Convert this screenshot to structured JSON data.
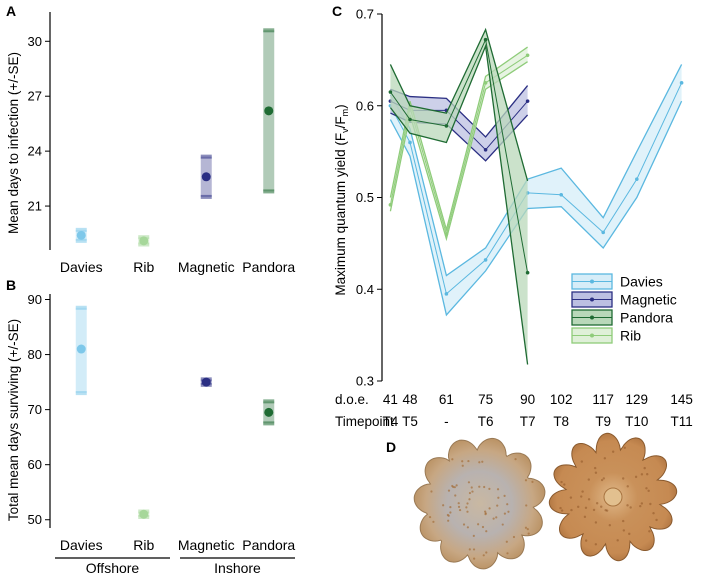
{
  "chart_data": [
    {
      "panel": "A",
      "type": "scatter",
      "title": "",
      "ylabel": "Mean days to infection (+/-SE)",
      "xlabel": "",
      "categories": [
        "Davies",
        "Rib",
        "Magnetic",
        "Pandora"
      ],
      "values": [
        19.4,
        19.1,
        22.6,
        26.2
      ],
      "se_low": [
        19.1,
        18.9,
        21.5,
        21.8
      ],
      "se_high": [
        19.7,
        19.3,
        23.7,
        30.6
      ],
      "colors": [
        "#7ec8ea",
        "#a6d79a",
        "#2b2f83",
        "#1f6b33"
      ],
      "ylim": [
        18.6,
        31.6
      ],
      "yticks": [
        21,
        24,
        27,
        30
      ]
    },
    {
      "panel": "B",
      "type": "scatter",
      "title": "",
      "ylabel": "Total mean days surviving (+/-SE)",
      "xlabel": "",
      "categories": [
        "Davies",
        "Rib",
        "Magnetic",
        "Pandora"
      ],
      "values": [
        81.0,
        51.0,
        75.0,
        69.5
      ],
      "se_low": [
        73.0,
        50.5,
        74.5,
        67.5
      ],
      "se_high": [
        88.5,
        51.5,
        75.5,
        71.5
      ],
      "colors": [
        "#7ec8ea",
        "#a6d79a",
        "#2b2f83",
        "#1f6b33"
      ],
      "ylim": [
        48.5,
        91
      ],
      "yticks": [
        50,
        60,
        70,
        80,
        90
      ],
      "groups": [
        {
          "label": "Offshore",
          "members": [
            "Davies",
            "Rib"
          ]
        },
        {
          "label": "Inshore",
          "members": [
            "Magnetic",
            "Pandora"
          ]
        }
      ]
    },
    {
      "panel": "C",
      "type": "line",
      "title": "",
      "ylabel_main": "Maximum quantum yield (F",
      "ylabel_sub1": "v",
      "ylabel_mid": "/F",
      "ylabel_sub2": "m",
      "ylabel_end": ")",
      "ylim": [
        0.3,
        0.7
      ],
      "yticks": [
        0.3,
        0.4,
        0.5,
        0.6,
        0.7
      ],
      "xlim": [
        38,
        148
      ],
      "doe_label": "d.o.e.",
      "timepoint_label": "Timepoint",
      "doe": [
        41,
        48,
        61,
        75,
        90,
        102,
        117,
        129,
        145
      ],
      "doe_text": [
        "41",
        "48",
        "61",
        "75",
        "90",
        "102",
        "117",
        "129",
        "145"
      ],
      "timepoints": [
        "T4",
        "T5",
        "-",
        "T6",
        "T7",
        "T8",
        "T9",
        "T10",
        "T11"
      ],
      "series": [
        {
          "name": "Davies",
          "color": "#5bb8e0",
          "fill": "#d6edf8",
          "x": [
            41,
            48,
            61,
            75,
            90,
            102,
            117,
            129,
            145
          ],
          "y": [
            0.6,
            0.56,
            0.395,
            0.432,
            0.505,
            0.503,
            0.462,
            0.52,
            0.625
          ],
          "lo": [
            0.585,
            0.545,
            0.372,
            0.42,
            0.488,
            0.49,
            0.445,
            0.5,
            0.605
          ],
          "hi": [
            0.612,
            0.575,
            0.415,
            0.445,
            0.52,
            0.532,
            0.478,
            0.55,
            0.645
          ]
        },
        {
          "name": "Magnetic",
          "color": "#2b2f83",
          "fill": "#bcc0e2",
          "x": [
            41,
            48,
            61,
            75,
            90
          ],
          "y": [
            0.605,
            0.595,
            0.595,
            0.552,
            0.605
          ],
          "lo": [
            0.592,
            0.582,
            0.58,
            0.54,
            0.59
          ],
          "hi": [
            0.618,
            0.61,
            0.608,
            0.566,
            0.622
          ]
        },
        {
          "name": "Pandora",
          "color": "#1f6b33",
          "fill": "#b9d8b9",
          "x": [
            41,
            48,
            61,
            75,
            90
          ],
          "y": [
            0.615,
            0.585,
            0.578,
            0.672,
            0.418
          ],
          "lo": [
            0.598,
            0.57,
            0.56,
            0.665,
            0.318
          ],
          "hi": [
            0.645,
            0.6,
            0.592,
            0.683,
            0.518
          ]
        },
        {
          "name": "Rib",
          "color": "#8fcc7a",
          "fill": "#dff0d8",
          "x": [
            41,
            48,
            61,
            75,
            90
          ],
          "y": [
            0.492,
            0.598,
            0.46,
            0.625,
            0.655
          ],
          "lo": [
            0.485,
            0.59,
            0.455,
            0.618,
            0.648
          ],
          "hi": [
            0.5,
            0.605,
            0.465,
            0.632,
            0.664
          ]
        }
      ]
    }
  ],
  "panels": {
    "A": "A",
    "B": "B",
    "C": "C",
    "D": "D"
  },
  "photos": {
    "left": "coral-recruit-infected",
    "right": "coral-recruit-healthy"
  }
}
